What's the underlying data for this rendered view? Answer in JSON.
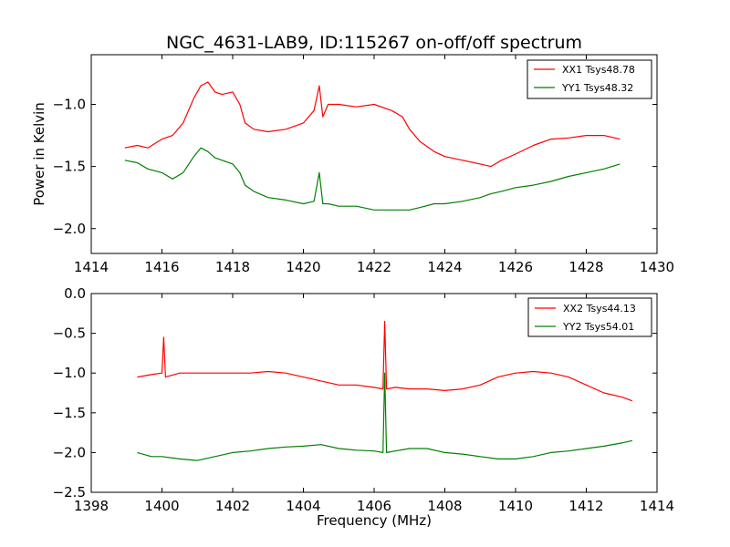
{
  "title": "NGC_4631-LAB9, ID:115267 on-off/off spectrum",
  "colors": {
    "xx": "#ff0000",
    "yy": "#008000"
  },
  "chart_data": [
    {
      "type": "line",
      "title": "NGC_4631-LAB9, ID:115267 on-off/off spectrum",
      "xlabel": "",
      "ylabel": "Power in Kelvin",
      "xlim": [
        1414,
        1430
      ],
      "ylim": [
        -2.2,
        -0.6
      ],
      "xticks": [
        1414,
        1416,
        1418,
        1420,
        1422,
        1424,
        1426,
        1428,
        1430
      ],
      "xtick_labels": [
        "1414",
        "1416",
        "1418",
        "1420",
        "1422",
        "1424",
        "1426",
        "1428",
        "1430"
      ],
      "yticks": [
        -1.0,
        -1.5,
        -2.0
      ],
      "ytick_labels": [
        "−1.0",
        "−1.5",
        "−2.0"
      ],
      "legend_position": "top-right",
      "series": [
        {
          "name": "XX1 Tsys48.78",
          "color": "#ff0000",
          "x": [
            1414.95,
            1415.3,
            1415.6,
            1416.0,
            1416.3,
            1416.6,
            1416.9,
            1417.1,
            1417.3,
            1417.5,
            1417.7,
            1418.0,
            1418.2,
            1418.35,
            1418.6,
            1419.0,
            1419.5,
            1420.0,
            1420.3,
            1420.45,
            1420.55,
            1420.7,
            1421.0,
            1421.5,
            1422.0,
            1422.5,
            1422.8,
            1423.0,
            1423.3,
            1423.7,
            1424.0,
            1424.5,
            1425.0,
            1425.3,
            1425.6,
            1426.0,
            1426.5,
            1427.0,
            1427.5,
            1428.0,
            1428.5,
            1428.95
          ],
          "y": [
            -1.35,
            -1.33,
            -1.35,
            -1.28,
            -1.25,
            -1.15,
            -0.95,
            -0.85,
            -0.82,
            -0.9,
            -0.92,
            -0.9,
            -1.0,
            -1.15,
            -1.2,
            -1.22,
            -1.2,
            -1.15,
            -1.05,
            -0.85,
            -1.1,
            -1.0,
            -1.0,
            -1.02,
            -1.0,
            -1.05,
            -1.1,
            -1.2,
            -1.3,
            -1.38,
            -1.42,
            -1.45,
            -1.48,
            -1.5,
            -1.45,
            -1.4,
            -1.33,
            -1.28,
            -1.27,
            -1.25,
            -1.25,
            -1.28
          ]
        },
        {
          "name": "YY1 Tsys48.32",
          "color": "#008000",
          "x": [
            1414.95,
            1415.3,
            1415.6,
            1416.0,
            1416.3,
            1416.6,
            1416.9,
            1417.1,
            1417.3,
            1417.5,
            1417.7,
            1418.0,
            1418.2,
            1418.35,
            1418.6,
            1419.0,
            1419.5,
            1420.0,
            1420.3,
            1420.45,
            1420.55,
            1420.7,
            1421.0,
            1421.5,
            1422.0,
            1422.5,
            1422.8,
            1423.0,
            1423.3,
            1423.7,
            1424.0,
            1424.5,
            1425.0,
            1425.3,
            1425.6,
            1426.0,
            1426.5,
            1427.0,
            1427.5,
            1428.0,
            1428.5,
            1428.95
          ],
          "y": [
            -1.45,
            -1.47,
            -1.52,
            -1.55,
            -1.6,
            -1.55,
            -1.42,
            -1.35,
            -1.38,
            -1.43,
            -1.45,
            -1.48,
            -1.55,
            -1.65,
            -1.7,
            -1.75,
            -1.77,
            -1.8,
            -1.78,
            -1.55,
            -1.8,
            -1.8,
            -1.82,
            -1.82,
            -1.85,
            -1.85,
            -1.85,
            -1.85,
            -1.83,
            -1.8,
            -1.8,
            -1.78,
            -1.75,
            -1.72,
            -1.7,
            -1.67,
            -1.65,
            -1.62,
            -1.58,
            -1.55,
            -1.52,
            -1.48
          ]
        }
      ]
    },
    {
      "type": "line",
      "title": "",
      "xlabel": "Frequency (MHz)",
      "ylabel": "",
      "xlim": [
        1398,
        1414
      ],
      "ylim": [
        -2.5,
        0.0
      ],
      "xticks": [
        1398,
        1400,
        1402,
        1404,
        1406,
        1408,
        1410,
        1412,
        1414
      ],
      "xtick_labels": [
        "1398",
        "1400",
        "1402",
        "1404",
        "1406",
        "1408",
        "1410",
        "1412",
        "1414"
      ],
      "yticks": [
        0.0,
        -0.5,
        -1.0,
        -1.5,
        -2.0,
        -2.5
      ],
      "ytick_labels": [
        "0.0",
        "−0.5",
        "−1.0",
        "−1.5",
        "−2.0",
        "−2.5"
      ],
      "legend_position": "top-right",
      "series": [
        {
          "name": "XX2 Tsys44.13",
          "color": "#ff0000",
          "x": [
            1399.3,
            1399.7,
            1400.0,
            1400.05,
            1400.1,
            1400.5,
            1401.0,
            1401.5,
            1402.0,
            1402.5,
            1403.0,
            1403.5,
            1404.0,
            1404.5,
            1405.0,
            1405.5,
            1406.0,
            1406.25,
            1406.3,
            1406.35,
            1406.6,
            1407.0,
            1407.5,
            1408.0,
            1408.5,
            1409.0,
            1409.5,
            1410.0,
            1410.5,
            1411.0,
            1411.5,
            1412.0,
            1412.5,
            1413.0,
            1413.3
          ],
          "y": [
            -1.05,
            -1.02,
            -1.0,
            -0.55,
            -1.05,
            -1.0,
            -1.0,
            -1.0,
            -1.0,
            -1.0,
            -0.98,
            -1.0,
            -1.05,
            -1.1,
            -1.15,
            -1.15,
            -1.18,
            -1.2,
            -0.35,
            -1.2,
            -1.18,
            -1.2,
            -1.2,
            -1.22,
            -1.2,
            -1.15,
            -1.05,
            -1.0,
            -0.98,
            -1.0,
            -1.05,
            -1.15,
            -1.25,
            -1.3,
            -1.35
          ]
        },
        {
          "name": "YY2 Tsys54.01",
          "color": "#008000",
          "x": [
            1399.3,
            1399.7,
            1400.0,
            1400.5,
            1401.0,
            1401.5,
            1402.0,
            1402.5,
            1403.0,
            1403.5,
            1404.0,
            1404.5,
            1405.0,
            1405.5,
            1406.0,
            1406.25,
            1406.3,
            1406.35,
            1406.6,
            1407.0,
            1407.5,
            1408.0,
            1408.5,
            1409.0,
            1409.5,
            1410.0,
            1410.5,
            1411.0,
            1411.5,
            1412.0,
            1412.5,
            1413.0,
            1413.3
          ],
          "y": [
            -2.0,
            -2.05,
            -2.05,
            -2.08,
            -2.1,
            -2.05,
            -2.0,
            -1.98,
            -1.95,
            -1.93,
            -1.92,
            -1.9,
            -1.95,
            -1.97,
            -1.98,
            -2.0,
            -1.0,
            -2.0,
            -1.98,
            -1.95,
            -1.95,
            -2.0,
            -2.02,
            -2.05,
            -2.08,
            -2.08,
            -2.05,
            -2.0,
            -1.98,
            -1.95,
            -1.92,
            -1.88,
            -1.85
          ]
        }
      ]
    }
  ]
}
